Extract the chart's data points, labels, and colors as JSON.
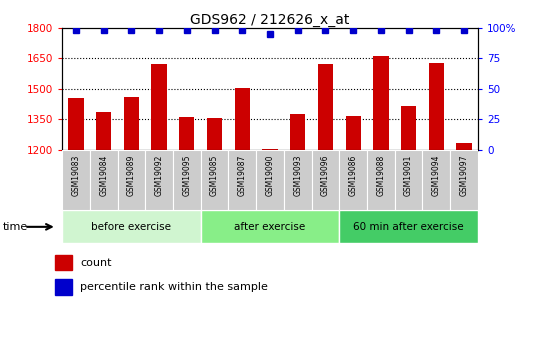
{
  "title": "GDS962 / 212626_x_at",
  "samples": [
    "GSM19083",
    "GSM19084",
    "GSM19089",
    "GSM19092",
    "GSM19095",
    "GSM19085",
    "GSM19087",
    "GSM19090",
    "GSM19093",
    "GSM19096",
    "GSM19086",
    "GSM19088",
    "GSM19091",
    "GSM19094",
    "GSM19097"
  ],
  "counts": [
    1455,
    1385,
    1460,
    1620,
    1360,
    1355,
    1505,
    1205,
    1375,
    1620,
    1365,
    1660,
    1415,
    1625,
    1235
  ],
  "percentile": [
    98,
    98,
    98,
    98,
    98,
    98,
    98,
    95,
    98,
    98,
    98,
    98,
    98,
    98,
    98
  ],
  "groups": [
    {
      "label": "before exercise",
      "start": 0,
      "end": 5,
      "color": "#d0f5d0"
    },
    {
      "label": "after exercise",
      "start": 5,
      "end": 10,
      "color": "#88ee88"
    },
    {
      "label": "60 min after exercise",
      "start": 10,
      "end": 15,
      "color": "#44cc66"
    }
  ],
  "bar_color": "#cc0000",
  "dot_color": "#0000cc",
  "ylim_left": [
    1200,
    1800
  ],
  "ylim_right": [
    0,
    100
  ],
  "yticks_left": [
    1200,
    1350,
    1500,
    1650,
    1800
  ],
  "yticks_right": [
    0,
    25,
    50,
    75,
    100
  ],
  "grid_lines": [
    1350,
    1500,
    1650
  ],
  "tick_label_bg": "#cccccc",
  "plot_bg": "#ffffff"
}
